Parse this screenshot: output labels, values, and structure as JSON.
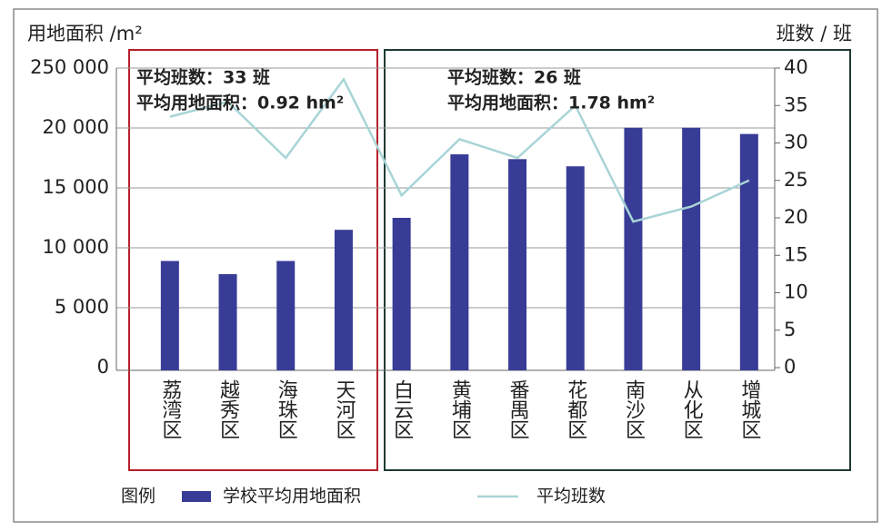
{
  "chart_data": {
    "type": "bar",
    "y_label": "用地面积 /m²",
    "y2_label": "班数 / 班",
    "legend_title": "图例",
    "annotations": [
      {
        "lines": [
          "平均班数：33 班",
          "平均用地面积：0.92 hm²"
        ],
        "color": "#b5202a"
      },
      {
        "lines": [
          "平均班数：26 班",
          "平均用地面积：1.78 hm²"
        ],
        "color": "#1f3a36"
      }
    ],
    "categories": [
      "荔湾区",
      "越秀区",
      "海珠区",
      "天河区",
      "白云区",
      "黄埔区",
      "番禺区",
      "花都区",
      "南沙区",
      "从化区",
      "增城区"
    ],
    "series": [
      {
        "name": "学校平均用地面积",
        "type": "bar",
        "color": "#383c96",
        "values": [
          8900,
          7800,
          8900,
          11500,
          12500,
          17800,
          17400,
          16800,
          21000,
          21000,
          19500
        ]
      },
      {
        "name": "平均班数",
        "type": "line",
        "axis": "y2",
        "color": "#a8d4d6",
        "values": [
          33.5,
          35.5,
          28,
          38.5,
          23,
          30.5,
          28,
          35,
          19.5,
          21.5,
          25
        ]
      }
    ],
    "ylim": [
      0,
      250000
    ],
    "yticks": [
      0,
      {
        "value": 5000,
        "label": "5 000"
      },
      {
        "value": 10000,
        "label": "10 000"
      },
      {
        "value": 15000,
        "label": "15 000"
      },
      {
        "value": 20000,
        "label": "20 000"
      },
      {
        "value": 250000,
        "label": "250 000"
      }
    ],
    "y2lim": [
      0,
      40
    ],
    "y2ticks": [
      0,
      5,
      10,
      15,
      20,
      25,
      30,
      35,
      40
    ],
    "grid": true
  }
}
